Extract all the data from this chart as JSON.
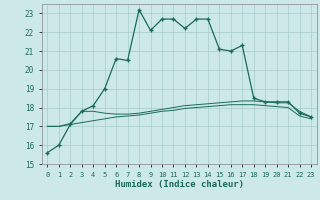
{
  "xlabel": "Humidex (Indice chaleur)",
  "background_color": "#cce8e8",
  "grid_color": "#a8cccc",
  "line_color": "#1a6b5a",
  "xlim": [
    -0.5,
    23.5
  ],
  "ylim": [
    15,
    23.5
  ],
  "yticks": [
    15,
    16,
    17,
    18,
    19,
    20,
    21,
    22,
    23
  ],
  "xticks": [
    0,
    1,
    2,
    3,
    4,
    5,
    6,
    7,
    8,
    9,
    10,
    11,
    12,
    13,
    14,
    15,
    16,
    17,
    18,
    19,
    20,
    21,
    22,
    23
  ],
  "main_x": [
    0,
    1,
    2,
    3,
    4,
    5,
    6,
    7,
    8,
    9,
    10,
    11,
    12,
    13,
    14,
    15,
    16,
    17,
    18,
    19,
    20,
    21,
    22,
    23
  ],
  "main_y": [
    15.6,
    16.0,
    17.1,
    17.8,
    18.1,
    19.0,
    20.6,
    20.5,
    23.2,
    22.1,
    22.7,
    22.7,
    22.2,
    22.7,
    22.7,
    21.1,
    21.0,
    21.3,
    18.5,
    18.3,
    18.3,
    18.3,
    17.7,
    17.5
  ],
  "line2_x": [
    0,
    1,
    2,
    3,
    4,
    5,
    6,
    7,
    8,
    9,
    10,
    11,
    12,
    13,
    14,
    15,
    16,
    17,
    18,
    19,
    20,
    21,
    22,
    23
  ],
  "line2_y": [
    17.0,
    17.0,
    17.15,
    17.8,
    17.8,
    17.7,
    17.65,
    17.65,
    17.7,
    17.8,
    17.9,
    18.0,
    18.1,
    18.15,
    18.2,
    18.25,
    18.3,
    18.35,
    18.35,
    18.3,
    18.25,
    18.25,
    17.8,
    17.5
  ],
  "line3_x": [
    0,
    1,
    2,
    3,
    4,
    5,
    6,
    7,
    8,
    9,
    10,
    11,
    12,
    13,
    14,
    15,
    16,
    17,
    18,
    19,
    20,
    21,
    22,
    23
  ],
  "line3_y": [
    17.0,
    17.0,
    17.1,
    17.2,
    17.3,
    17.4,
    17.5,
    17.55,
    17.6,
    17.7,
    17.8,
    17.85,
    17.95,
    18.0,
    18.05,
    18.1,
    18.15,
    18.15,
    18.15,
    18.1,
    18.05,
    18.0,
    17.55,
    17.4
  ]
}
